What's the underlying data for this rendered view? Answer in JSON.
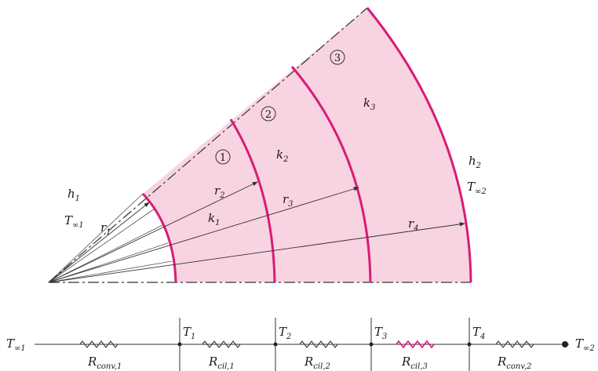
{
  "colors": {
    "fill": "#f8d3e1",
    "layer_boundary": "#d81b78",
    "resistor_highlight": "#d81b78",
    "line": "#333333"
  },
  "cylinder": {
    "layers": [
      {
        "number": "1",
        "conductivity": "k",
        "conductivity_sub": "1"
      },
      {
        "number": "2",
        "conductivity": "k",
        "conductivity_sub": "2"
      },
      {
        "number": "3",
        "conductivity": "k",
        "conductivity_sub": "3"
      }
    ],
    "radii": [
      {
        "label": "r",
        "sub": "1"
      },
      {
        "label": "r",
        "sub": "2"
      },
      {
        "label": "r",
        "sub": "3"
      },
      {
        "label": "r",
        "sub": "4"
      }
    ],
    "inner": {
      "h": "h",
      "h_sub": "1",
      "T": "T",
      "T_sub": "∞1"
    },
    "outer": {
      "h": "h",
      "h_sub": "2",
      "T": "T",
      "T_sub": "∞2"
    }
  },
  "network": {
    "left_temp": {
      "label": "T",
      "sub": "∞1"
    },
    "right_temp": {
      "label": "T",
      "sub": "∞2"
    },
    "nodes": [
      {
        "label": "T",
        "sub": "1"
      },
      {
        "label": "T",
        "sub": "2"
      },
      {
        "label": "T",
        "sub": "3"
      },
      {
        "label": "T",
        "sub": "4"
      }
    ],
    "resistors": [
      {
        "label": "R",
        "sub": "conv,1"
      },
      {
        "label": "R",
        "sub": "cil,1"
      },
      {
        "label": "R",
        "sub": "cil,2"
      },
      {
        "label": "R",
        "sub": "cil,3"
      },
      {
        "label": "R",
        "sub": "conv,2"
      }
    ]
  }
}
